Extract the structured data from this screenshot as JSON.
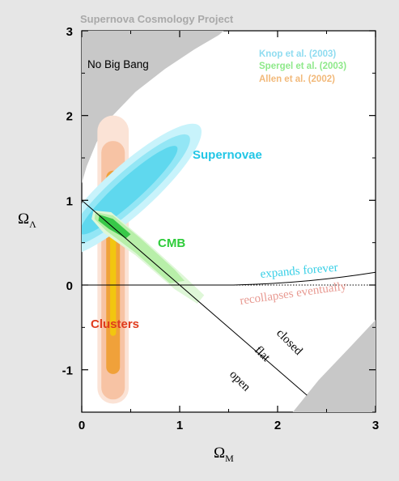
{
  "chart_data": {
    "type": "scatter",
    "title": "Supernova Cosmology Project",
    "xlabel": "Ω_M",
    "ylabel": "Ω_Λ",
    "xlim": [
      0,
      3
    ],
    "ylim": [
      -1.5,
      3
    ],
    "xticks": [
      "0",
      "1",
      "2",
      "3"
    ],
    "yticks": [
      "-1",
      "0",
      "1",
      "2",
      "3"
    ],
    "xtick_values": [
      0,
      1,
      2,
      3
    ],
    "ytick_values": [
      -1,
      0,
      1,
      2,
      3
    ],
    "legend": [
      {
        "label": "Knop et al. (2003)",
        "color": "#8fdcf0"
      },
      {
        "label": "Spergel et al.  (2003)",
        "color": "#8ee98a"
      },
      {
        "label": "Allen et al.  (2002)",
        "color": "#f2b97a"
      }
    ],
    "regions": [
      {
        "label": "No Big Bang",
        "color": "#c8c8c8"
      }
    ],
    "constraints": [
      {
        "name": "Supernovae",
        "color": "#22c6e6",
        "center": [
          0.48,
          1.12
        ],
        "contours": [
          "68%",
          "95%",
          "99%"
        ]
      },
      {
        "name": "CMB",
        "color": "#2ecc3a",
        "center": [
          0.35,
          0.68
        ],
        "contours": [
          "68%",
          "95%",
          "99%"
        ]
      },
      {
        "name": "Clusters",
        "color": "#e03c1e",
        "center": [
          0.3,
          -0.2
        ],
        "contours": [
          "68%",
          "95%",
          "99%"
        ]
      }
    ],
    "lines": [
      {
        "name": "flat",
        "points": [
          [
            0,
            1
          ],
          [
            2.3,
            -1.3
          ]
        ]
      },
      {
        "name": "expands forever / recollapses eventually",
        "points": [
          [
            0,
            0
          ],
          [
            1.55,
            0
          ],
          [
            3,
            0.15
          ]
        ]
      }
    ],
    "annotations": [
      "expands forever",
      "recollapses eventually",
      "closed",
      "flat",
      "open"
    ],
    "grid": false,
    "legend_placement": "top-right"
  }
}
